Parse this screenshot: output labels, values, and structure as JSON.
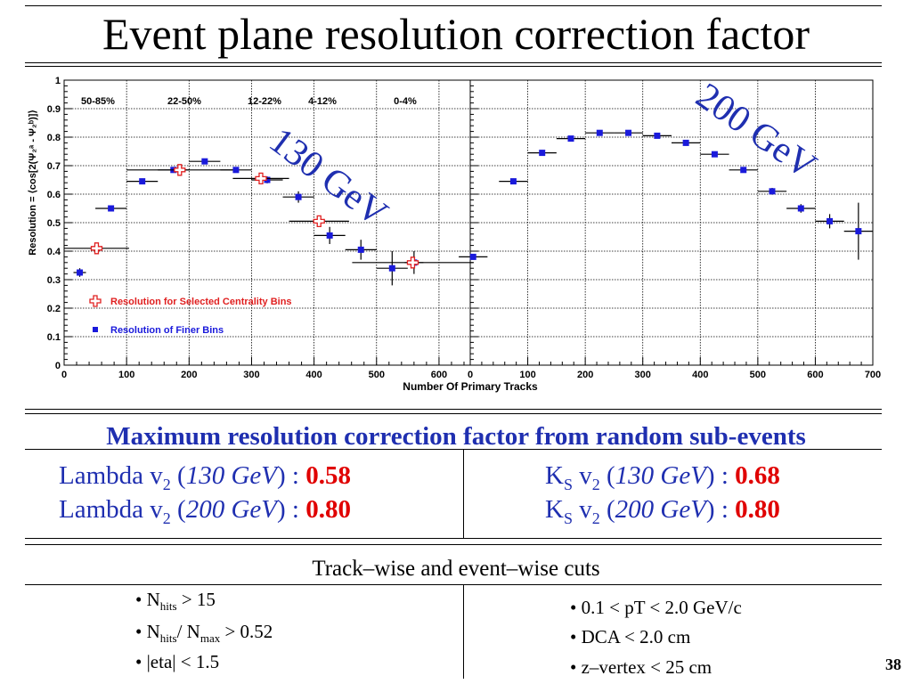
{
  "slide": {
    "title": "Event plane resolution correction factor",
    "page_number": "38"
  },
  "chart_data": {
    "type": "scatter",
    "ylabel": "Resolution = ⟨cos[2(Ψ₂ᵃ - Ψ₂ᵇ)]⟩",
    "xlabel": "Number Of Primary Tracks",
    "energy_labels": {
      "left": "130 GeV",
      "right": "200 GeV"
    },
    "ylim": [
      0,
      1
    ],
    "yticks": [
      "0",
      "0.1",
      "0.2",
      "0.3",
      "0.4",
      "0.5",
      "0.6",
      "0.7",
      "0.8",
      "0.9",
      "1"
    ],
    "grid": true,
    "centrality_labels": [
      "50-85%",
      "22-50%",
      "12-22%",
      "4-12%",
      "0-4%"
    ],
    "legend": {
      "selected": "Resolution for Selected Centrality Bins",
      "finer": "Resolution of Finer Bins"
    },
    "panels": [
      {
        "energy": "130 GeV",
        "xlim": [
          0,
          650
        ],
        "xticks": [
          "0",
          "100",
          "200",
          "300",
          "400",
          "500",
          "600"
        ],
        "series": [
          {
            "name": "Resolution of Finer Bins",
            "color": "#1a1adb",
            "marker": "square",
            "points": [
              {
                "x": 25,
                "y": 0.325,
                "xerr": 10,
                "yerr": 0.015
              },
              {
                "x": 75,
                "y": 0.55,
                "xerr": 25,
                "yerr": 0.01
              },
              {
                "x": 125,
                "y": 0.645,
                "xerr": 25,
                "yerr": 0.01
              },
              {
                "x": 175,
                "y": 0.685,
                "xerr": 25,
                "yerr": 0.01
              },
              {
                "x": 225,
                "y": 0.715,
                "xerr": 25,
                "yerr": 0.01
              },
              {
                "x": 275,
                "y": 0.685,
                "xerr": 25,
                "yerr": 0.01
              },
              {
                "x": 325,
                "y": 0.65,
                "xerr": 25,
                "yerr": 0.012
              },
              {
                "x": 375,
                "y": 0.59,
                "xerr": 25,
                "yerr": 0.02
              },
              {
                "x": 425,
                "y": 0.455,
                "xerr": 25,
                "yerr": 0.03
              },
              {
                "x": 475,
                "y": 0.405,
                "xerr": 25,
                "yerr": 0.035
              },
              {
                "x": 525,
                "y": 0.34,
                "xerr": 25,
                "yerr": 0.06
              },
              {
                "x": 560,
                "y": 0.36,
                "xerr": 15,
                "yerr": 0.04
              }
            ]
          },
          {
            "name": "Resolution for Selected Centrality Bins",
            "color": "#e02020",
            "marker": "cross",
            "points": [
              {
                "x": 52,
                "y": 0.41,
                "xerr": 52,
                "yerr": 0.01
              },
              {
                "x": 185,
                "y": 0.685,
                "xerr": 85,
                "yerr": 0.015
              },
              {
                "x": 315,
                "y": 0.655,
                "xerr": 45,
                "yerr": 0.012
              },
              {
                "x": 408,
                "y": 0.505,
                "xerr": 48,
                "yerr": 0.015
              },
              {
                "x": 558,
                "y": 0.36,
                "xerr": 97,
                "yerr": 0.02
              }
            ]
          }
        ]
      },
      {
        "energy": "200 GeV",
        "xlim": [
          0,
          700
        ],
        "xticks": [
          "0",
          "100",
          "200",
          "300",
          "400",
          "500",
          "600",
          "700"
        ],
        "series": [
          {
            "name": "Resolution of Finer Bins",
            "color": "#1a1adb",
            "marker": "square",
            "points": [
              {
                "x": 5,
                "y": 0.38,
                "xerr": 25,
                "yerr": 0.01
              },
              {
                "x": 75,
                "y": 0.645,
                "xerr": 25,
                "yerr": 0.01
              },
              {
                "x": 125,
                "y": 0.745,
                "xerr": 25,
                "yerr": 0.01
              },
              {
                "x": 175,
                "y": 0.795,
                "xerr": 25,
                "yerr": 0.008
              },
              {
                "x": 225,
                "y": 0.815,
                "xerr": 25,
                "yerr": 0.008
              },
              {
                "x": 275,
                "y": 0.815,
                "xerr": 25,
                "yerr": 0.008
              },
              {
                "x": 325,
                "y": 0.805,
                "xerr": 25,
                "yerr": 0.008
              },
              {
                "x": 375,
                "y": 0.78,
                "xerr": 25,
                "yerr": 0.01
              },
              {
                "x": 425,
                "y": 0.74,
                "xerr": 25,
                "yerr": 0.01
              },
              {
                "x": 475,
                "y": 0.685,
                "xerr": 25,
                "yerr": 0.01
              },
              {
                "x": 525,
                "y": 0.61,
                "xerr": 25,
                "yerr": 0.012
              },
              {
                "x": 575,
                "y": 0.55,
                "xerr": 25,
                "yerr": 0.015
              },
              {
                "x": 625,
                "y": 0.505,
                "xerr": 25,
                "yerr": 0.025
              },
              {
                "x": 675,
                "y": 0.47,
                "xerr": 25,
                "yerr": 0.1
              }
            ]
          }
        ]
      }
    ]
  },
  "max_resolution": {
    "heading": "Maximum resolution correction factor from random sub-events",
    "lambda": [
      {
        "prefix": "Lambda v",
        "sub": "2",
        "open": " (",
        "energy": "130 GeV",
        "close": ") : ",
        "value": "0.58"
      },
      {
        "prefix": "Lambda v",
        "sub": "2",
        "open": " (",
        "energy": "200 GeV",
        "close": ") : ",
        "value": "0.80"
      }
    ],
    "ks": [
      {
        "k": "K",
        "ksub": "S",
        "v": " v",
        "sub": "2",
        "open": " (",
        "energy": "130 GeV",
        "close": ") : ",
        "value": "0.68"
      },
      {
        "k": "K",
        "ksub": "S",
        "v": " v",
        "sub": "2",
        "open": " (",
        "energy": "200 GeV",
        "close": ") : ",
        "value": "0.80"
      }
    ]
  },
  "cuts": {
    "heading": "Track–wise and event–wise cuts",
    "nhits": {
      "pre": "• N",
      "sub": "hits",
      "post": " > 15"
    },
    "nratio": {
      "pre": "• N",
      "sub1": "hits",
      "mid": "/ N",
      "sub2": "max",
      "post": " > 0.52"
    },
    "eta": "• |eta| < 1.5",
    "right": [
      "• 0.1 < pT < 2.0 GeV/c",
      "• DCA < 2.0 cm",
      "• z–vertex < 25 cm"
    ]
  }
}
